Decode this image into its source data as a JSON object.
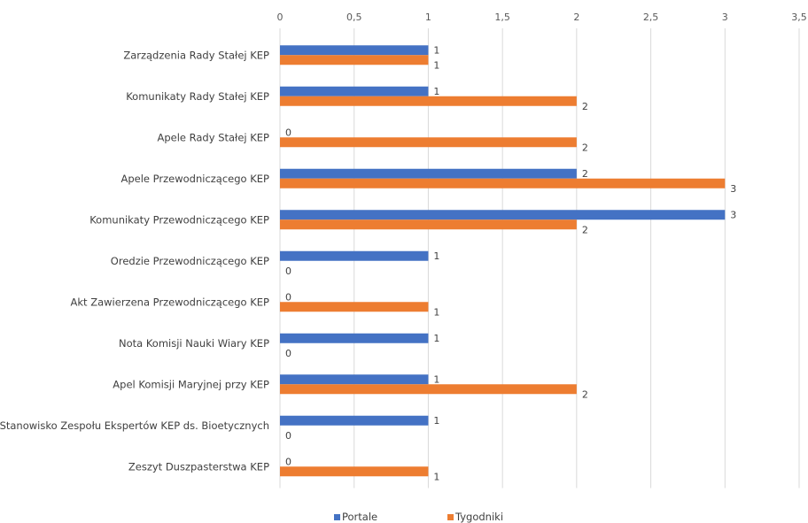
{
  "chart_data": {
    "type": "bar",
    "orientation": "horizontal",
    "categories": [
      "Zarządzenia Rady Stałej KEP",
      "Komunikaty Rady Stałej KEP",
      "Apele Rady Stałej KEP",
      "Apele Przewodniczącego KEP",
      "Komunikaty Przewodniczącego KEP",
      "Oredzie Przewodniczącego KEP",
      "Akt Zawierzena Przewodniczącego KEP",
      "Nota Komisji Nauki Wiary KEP",
      "Apel Komisji Maryjnej przy KEP",
      "Stanowisko Zespołu Ekspertów KEP ds. Bioetycznych",
      "Zeszyt Duszpasterstwa KEP"
    ],
    "series": [
      {
        "name": "Portale",
        "color": "#4472C4",
        "values": [
          1,
          1,
          0,
          2,
          3,
          1,
          0,
          1,
          1,
          1,
          0
        ]
      },
      {
        "name": "Tygodniki",
        "color": "#ED7D31",
        "values": [
          1,
          2,
          2,
          3,
          2,
          0,
          1,
          0,
          2,
          0,
          1
        ]
      }
    ],
    "xlim": [
      0,
      3.5
    ],
    "xticks": [
      "0",
      "0,5",
      "1",
      "1,5",
      "2",
      "2,5",
      "3",
      "3,5"
    ],
    "grid": true,
    "legend_position": "bottom",
    "title": "",
    "xlabel": "",
    "ylabel": ""
  }
}
